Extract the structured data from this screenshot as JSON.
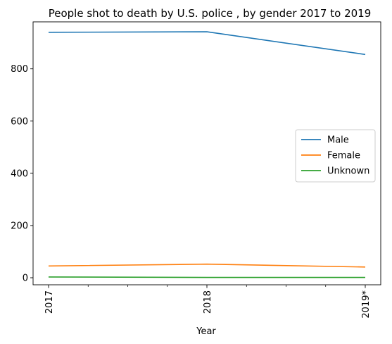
{
  "chart_data": {
    "type": "line",
    "title": "People shot to death by U.S. police , by gender 2017 to 2019",
    "xlabel": "Year",
    "ylabel": "",
    "categories": [
      "2017",
      "2018",
      "2019*"
    ],
    "ylim": [
      -27,
      980
    ],
    "yticks": [
      0,
      200,
      400,
      600,
      800
    ],
    "legend_position": "center-right",
    "grid": false,
    "series": [
      {
        "name": "Male",
        "values": [
          940,
          942,
          855
        ],
        "color": "#1f77b4"
      },
      {
        "name": "Female",
        "values": [
          45,
          52,
          41
        ],
        "color": "#ff7f0e"
      },
      {
        "name": "Unknown",
        "values": [
          3,
          1,
          1
        ],
        "color": "#2ca02c"
      }
    ]
  }
}
